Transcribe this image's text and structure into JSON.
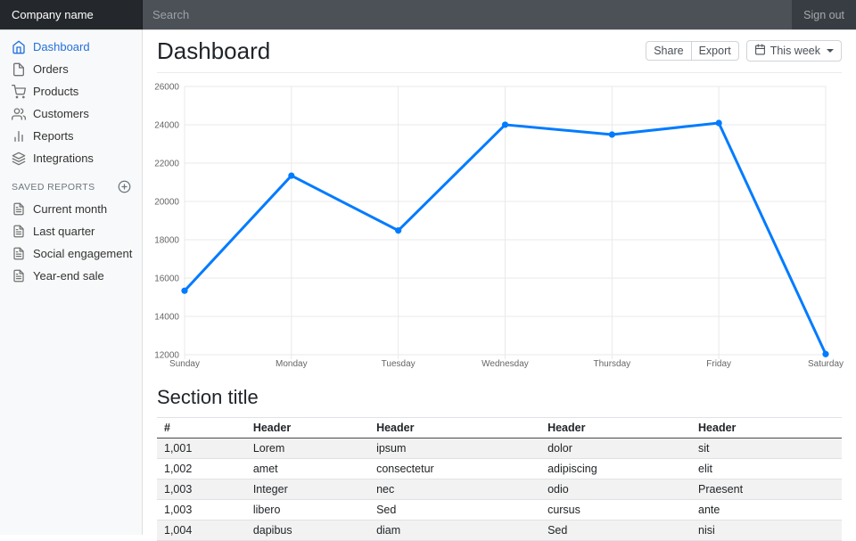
{
  "navbar": {
    "brand": "Company name",
    "search_placeholder": "Search",
    "sign_out": "Sign out"
  },
  "sidebar": {
    "items": [
      {
        "label": "Dashboard",
        "icon": "home",
        "active": true
      },
      {
        "label": "Orders",
        "icon": "file",
        "active": false
      },
      {
        "label": "Products",
        "icon": "shopping-cart",
        "active": false
      },
      {
        "label": "Customers",
        "icon": "users",
        "active": false
      },
      {
        "label": "Reports",
        "icon": "bar-chart",
        "active": false
      },
      {
        "label": "Integrations",
        "icon": "layers",
        "active": false
      }
    ],
    "saved_reports_heading": "Saved reports",
    "saved_reports": [
      {
        "label": "Current month",
        "icon": "file-text"
      },
      {
        "label": "Last quarter",
        "icon": "file-text"
      },
      {
        "label": "Social engagement",
        "icon": "file-text"
      },
      {
        "label": "Year-end sale",
        "icon": "file-text"
      }
    ]
  },
  "header": {
    "title": "Dashboard",
    "buttons": [
      "Share",
      "Export"
    ],
    "period_button": "This week"
  },
  "chart_data": {
    "type": "line",
    "title": "",
    "x": [
      "Sunday",
      "Monday",
      "Tuesday",
      "Wednesday",
      "Thursday",
      "Friday",
      "Saturday"
    ],
    "values": [
      15339,
      21345,
      18483,
      24003,
      23489,
      24092,
      12034
    ],
    "xlabel": "",
    "ylabel": "",
    "ylim": [
      12000,
      26000
    ],
    "ytick_step": 2000,
    "grid": true,
    "legend": false,
    "line_color": "#007bff",
    "point_color": "#007bff",
    "grid_color": "#e9e9e9",
    "tick_color": "#666666"
  },
  "section": {
    "title": "Section title",
    "table": {
      "headers": [
        "#",
        "Header",
        "Header",
        "Header",
        "Header"
      ],
      "rows": [
        [
          "1,001",
          "Lorem",
          "ipsum",
          "dolor",
          "sit"
        ],
        [
          "1,002",
          "amet",
          "consectetur",
          "adipiscing",
          "elit"
        ],
        [
          "1,003",
          "Integer",
          "nec",
          "odio",
          "Praesent"
        ],
        [
          "1,003",
          "libero",
          "Sed",
          "cursus",
          "ante"
        ],
        [
          "1,004",
          "dapibus",
          "diam",
          "Sed",
          "nisi"
        ]
      ]
    }
  },
  "colors": {
    "accent": "#007bff",
    "active_link": "#2470dc",
    "navbar_bg": "#373d43"
  }
}
